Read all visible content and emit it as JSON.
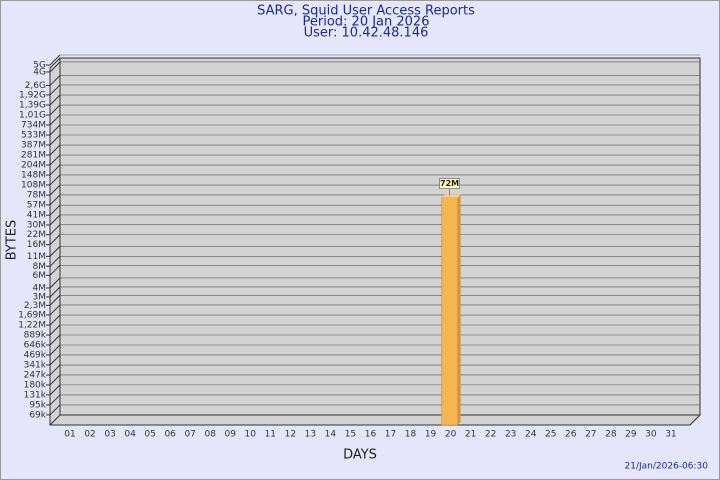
{
  "chart_data": {
    "type": "bar",
    "title": "SARG, Squid User Access Reports",
    "subtitle": "Period: 20 Jan 2026",
    "user": "User: 10.42.48.146",
    "x_label": "DAYS",
    "y_label": "BYTES",
    "footer": "21/Jan/2026-06:30",
    "log_scale": true,
    "grid": true,
    "color": "#f5b553",
    "categories": [
      "01",
      "02",
      "03",
      "04",
      "05",
      "06",
      "07",
      "08",
      "09",
      "10",
      "11",
      "12",
      "13",
      "14",
      "15",
      "16",
      "17",
      "18",
      "19",
      "20",
      "21",
      "22",
      "23",
      "24",
      "25",
      "26",
      "27",
      "28",
      "29",
      "30",
      "31"
    ],
    "values": [
      null,
      null,
      null,
      null,
      null,
      null,
      null,
      null,
      null,
      null,
      null,
      null,
      null,
      null,
      null,
      null,
      null,
      null,
      null,
      72000000,
      null,
      null,
      null,
      null,
      null,
      null,
      null,
      null,
      null,
      null,
      null
    ],
    "value_labels": [
      null,
      null,
      null,
      null,
      null,
      null,
      null,
      null,
      null,
      null,
      null,
      null,
      null,
      null,
      null,
      null,
      null,
      null,
      null,
      "72M",
      null,
      null,
      null,
      null,
      null,
      null,
      null,
      null,
      null,
      null,
      null
    ],
    "ylim": [
      50000,
      5000000000
    ],
    "yticks": [
      {
        "value": 5000000000,
        "label": "5G"
      },
      {
        "value": 4000000000,
        "label": "4G"
      },
      {
        "value": 2600000000,
        "label": "2,6G"
      },
      {
        "value": 1920000000,
        "label": "1,92G"
      },
      {
        "value": 1390000000,
        "label": "1,39G"
      },
      {
        "value": 1010000000,
        "label": "1,01G"
      },
      {
        "value": 734000000,
        "label": "734M"
      },
      {
        "value": 533000000,
        "label": "533M"
      },
      {
        "value": 387000000,
        "label": "387M"
      },
      {
        "value": 281000000,
        "label": "281M"
      },
      {
        "value": 204000000,
        "label": "204M"
      },
      {
        "value": 148000000,
        "label": "148M"
      },
      {
        "value": 108000000,
        "label": "108M"
      },
      {
        "value": 78000000,
        "label": "78M"
      },
      {
        "value": 57000000,
        "label": "57M"
      },
      {
        "value": 41000000,
        "label": "41M"
      },
      {
        "value": 30000000,
        "label": "30M"
      },
      {
        "value": 22000000,
        "label": "22M"
      },
      {
        "value": 16000000,
        "label": "16M"
      },
      {
        "value": 11000000,
        "label": "11M"
      },
      {
        "value": 8000000,
        "label": "8M"
      },
      {
        "value": 6000000,
        "label": "6M"
      },
      {
        "value": 4000000,
        "label": "4M"
      },
      {
        "value": 3000000,
        "label": "3M"
      },
      {
        "value": 2300000,
        "label": "2,3M"
      },
      {
        "value": 1690000,
        "label": "1,69M"
      },
      {
        "value": 1220000,
        "label": "1,22M"
      },
      {
        "value": 889000,
        "label": "889k"
      },
      {
        "value": 646000,
        "label": "646k"
      },
      {
        "value": 469000,
        "label": "469k"
      },
      {
        "value": 341000,
        "label": "341k"
      },
      {
        "value": 247000,
        "label": "247k"
      },
      {
        "value": 180000,
        "label": "180k"
      },
      {
        "value": 131000,
        "label": "131k"
      },
      {
        "value": 95000,
        "label": "95k"
      },
      {
        "value": 69000,
        "label": "69k"
      }
    ]
  }
}
